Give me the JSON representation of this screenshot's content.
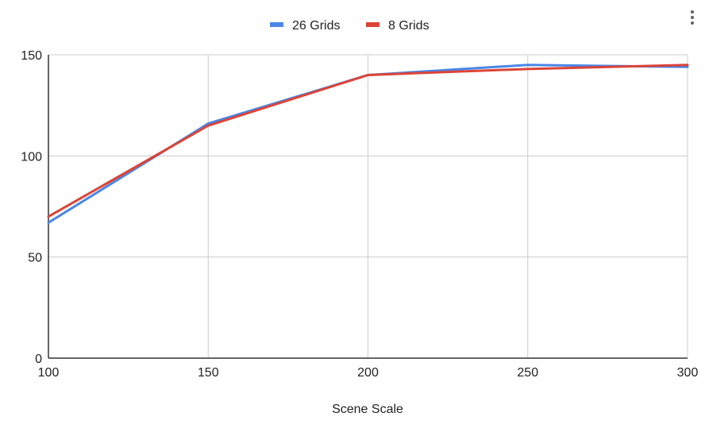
{
  "menu": {
    "icon": "more-vert-icon"
  },
  "chart_data": {
    "type": "line",
    "title": "",
    "xlabel": "Scene Scale",
    "ylabel": "",
    "x": [
      100,
      150,
      200,
      250,
      300
    ],
    "xlim": [
      100,
      300
    ],
    "ylim": [
      0,
      150
    ],
    "x_ticks": [
      100,
      150,
      200,
      250,
      300
    ],
    "y_ticks": [
      0,
      50,
      100,
      150
    ],
    "grid": true,
    "legend_position": "top-center",
    "series": [
      {
        "name": "26 Grids",
        "color": "#4a86e8",
        "values": [
          67,
          116,
          140,
          145,
          144
        ]
      },
      {
        "name": "8 Grids",
        "color": "#db4437",
        "values": [
          70,
          115,
          140,
          143,
          145
        ]
      }
    ]
  }
}
